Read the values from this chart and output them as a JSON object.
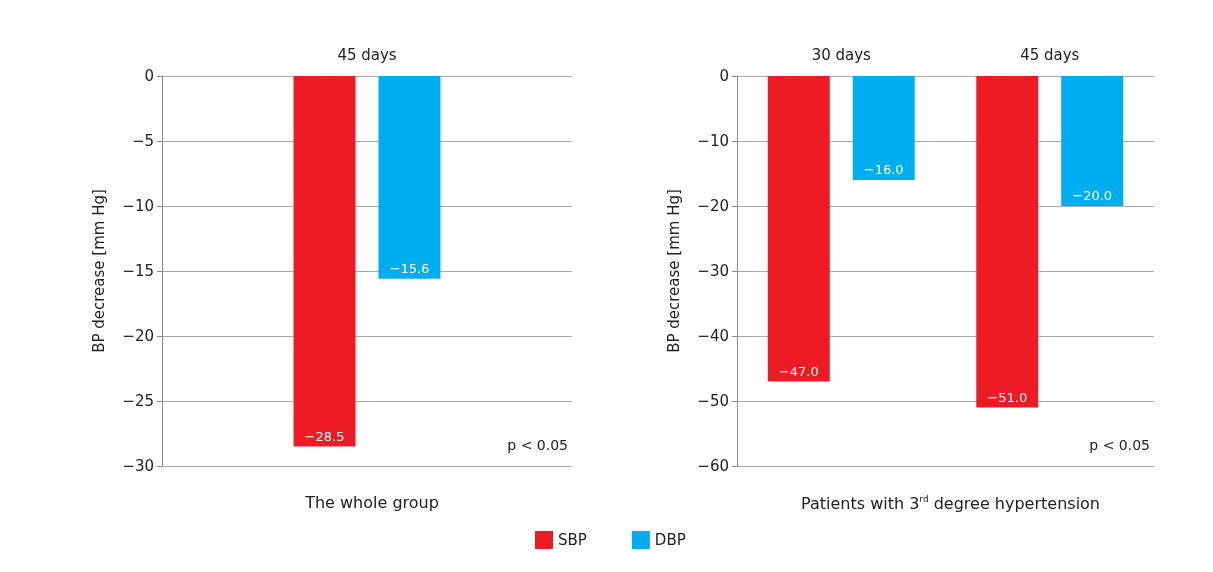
{
  "chart_data": [
    {
      "type": "bar",
      "categories": [
        "45 days"
      ],
      "xlabel": "The whole group",
      "ylabel": "BP decrease [mm Hg]",
      "ylim": [
        -30,
        0
      ],
      "yticks": [
        -30,
        -25,
        -20,
        -15,
        -10,
        -5,
        0
      ],
      "grid": "y",
      "legend": "bottom",
      "annotations": [
        "p < 0.05"
      ],
      "series": [
        {
          "name": "SBP",
          "color": "#ed1c24",
          "values": [
            -28.5
          ],
          "value_labels": [
            "−28.5"
          ]
        },
        {
          "name": "DBP",
          "color": "#00aeef",
          "values": [
            -15.6
          ],
          "value_labels": [
            "−15.6"
          ]
        }
      ]
    },
    {
      "type": "bar",
      "categories": [
        "30 days",
        "45 days"
      ],
      "xlabel": "Patients with 3$^{rd}$ degree hypertension",
      "ylabel": "BP decrease [mm Hg]",
      "ylim": [
        -60,
        0
      ],
      "yticks": [
        -60,
        -50,
        -40,
        -30,
        -20,
        -10,
        0
      ],
      "grid": "y",
      "annotations": [
        "p < 0.05"
      ],
      "series": [
        {
          "color": "#ed1c24",
          "values": [
            -47,
            -51
          ],
          "value_labels": [
            "−47.0",
            "−51.0"
          ]
        },
        {
          "color": "#00aeef",
          "values": [
            -16,
            -20
          ],
          "value_labels": [
            "−16.0",
            "−20.0"
          ]
        }
      ]
    }
  ]
}
